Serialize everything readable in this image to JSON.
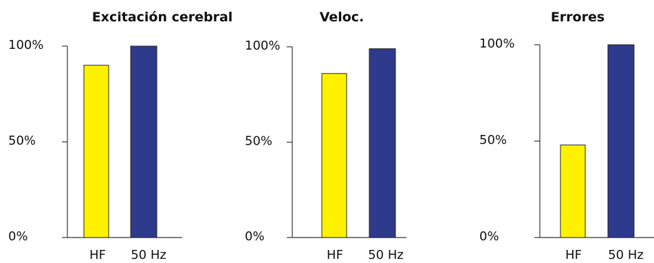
{
  "chart_data": [
    {
      "type": "bar",
      "title": "Excitación cerebral",
      "categories": [
        "HF",
        "50 Hz"
      ],
      "values": [
        90,
        100
      ],
      "ylim": [
        0,
        100
      ],
      "yticks": [
        "0%",
        "50%",
        "100%"
      ],
      "colors": [
        "#FFF200",
        "#2E3A8C"
      ],
      "grid": false,
      "legend": "none"
    },
    {
      "type": "bar",
      "title": "Veloc.",
      "categories": [
        "HF",
        "50 Hz"
      ],
      "values": [
        86,
        99
      ],
      "ylim": [
        0,
        100
      ],
      "yticks": [
        "0%",
        "50%",
        "100%"
      ],
      "colors": [
        "#FFF200",
        "#2E3A8C"
      ],
      "grid": false,
      "legend": "none"
    },
    {
      "type": "bar",
      "title": "Errores",
      "categories": [
        "HF",
        "50 Hz"
      ],
      "values": [
        48,
        100
      ],
      "ylim": [
        0,
        100
      ],
      "yticks": [
        "0%",
        "50%",
        "100%"
      ],
      "colors": [
        "#FFF200",
        "#2E3A8C"
      ],
      "grid": false,
      "legend": "none"
    }
  ]
}
